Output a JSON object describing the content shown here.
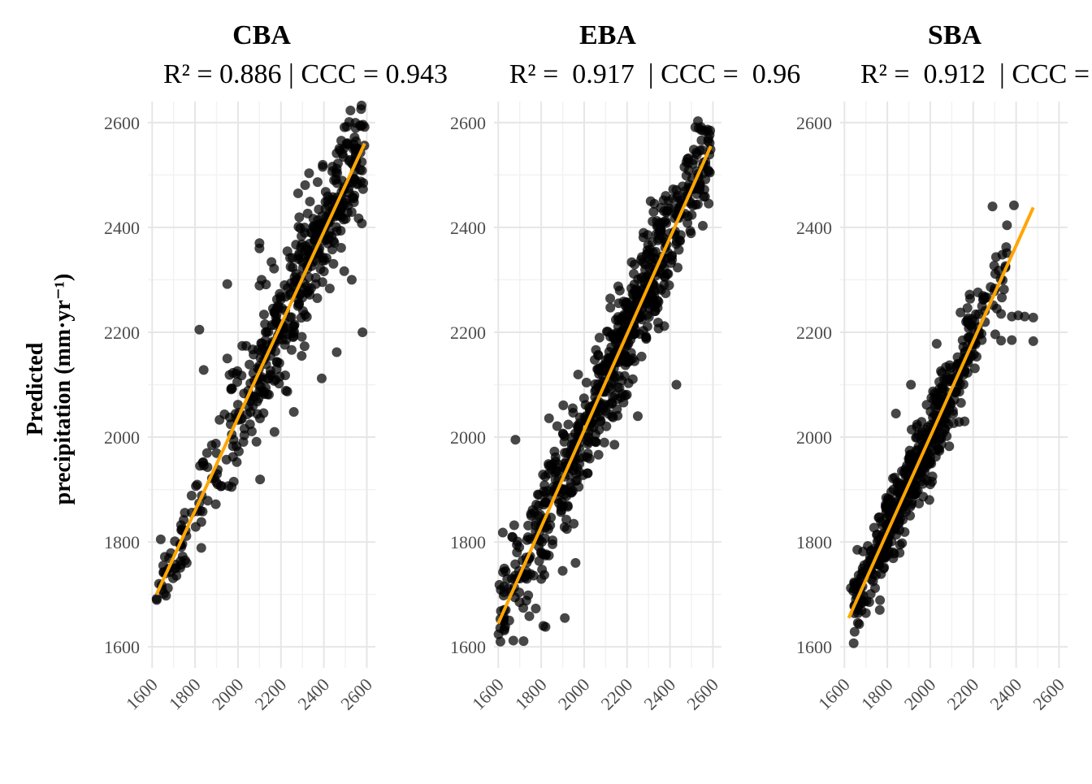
{
  "y_axis_label": {
    "line1": "Predicted",
    "line2": "precipitation (mm·yr⁻¹)"
  },
  "chart_data": [
    {
      "type": "scatter",
      "title": "CBA",
      "subtitle": "R² = 0.886 | CCC = 0.943",
      "xlabel": "",
      "ylabel": "Predicted precipitation (mm·yr⁻¹)",
      "xlim": [
        1580,
        2640
      ],
      "ylim": [
        1560,
        2640
      ],
      "xticks": [
        1600,
        1800,
        2000,
        2200,
        2400,
        2600
      ],
      "yticks": [
        1600,
        1800,
        2000,
        2200,
        2400,
        2600
      ],
      "grid": true,
      "point_color": "#000000",
      "fit_line": {
        "color": "#FFA500",
        "x": [
          1620,
          2590
        ],
        "y": [
          1700,
          2560
        ]
      },
      "clusters": [
        {
          "x_range": [
            1620,
            1760
          ],
          "y_center_at": "fit",
          "spread": 30,
          "n": 40
        },
        {
          "x_range": [
            1760,
            1960
          ],
          "y_center_at": "fit",
          "spread": 40,
          "n": 35
        },
        {
          "x_range": [
            1960,
            2100
          ],
          "y_center_at": "fit",
          "spread": 55,
          "n": 60
        },
        {
          "x_range": [
            2100,
            2350
          ],
          "y_center_at": "fit",
          "spread": 60,
          "n": 180
        },
        {
          "x_range": [
            2350,
            2590
          ],
          "y_center_at": "fit",
          "spread": 55,
          "n": 180
        }
      ],
      "outliers": [
        {
          "x": 1640,
          "y": 1805
        },
        {
          "x": 1820,
          "y": 2205
        },
        {
          "x": 1840,
          "y": 2128
        },
        {
          "x": 1950,
          "y": 2292
        },
        {
          "x": 1950,
          "y": 2150
        },
        {
          "x": 2100,
          "y": 2370
        },
        {
          "x": 2100,
          "y": 2360
        },
        {
          "x": 2110,
          "y": 2300
        },
        {
          "x": 2170,
          "y": 2010
        },
        {
          "x": 2260,
          "y": 2048
        },
        {
          "x": 2390,
          "y": 2112
        },
        {
          "x": 2460,
          "y": 2162
        },
        {
          "x": 2530,
          "y": 2300
        },
        {
          "x": 2580,
          "y": 2200
        },
        {
          "x": 2280,
          "y": 2465
        },
        {
          "x": 1980,
          "y": 1915
        },
        {
          "x": 1970,
          "y": 1905
        },
        {
          "x": 1905,
          "y": 1910
        }
      ]
    },
    {
      "type": "scatter",
      "title": "EBA",
      "subtitle": "R² =  0.917  | CCC =  0.96",
      "xlabel": "",
      "ylabel": "",
      "xlim": [
        1580,
        2640
      ],
      "ylim": [
        1560,
        2640
      ],
      "xticks": [
        1600,
        1800,
        2000,
        2200,
        2400,
        2600
      ],
      "yticks": [
        1600,
        1800,
        2000,
        2200,
        2400,
        2600
      ],
      "grid": true,
      "point_color": "#000000",
      "fit_line": {
        "color": "#FFA500",
        "x": [
          1600,
          2590
        ],
        "y": [
          1645,
          2555
        ]
      },
      "clusters": [
        {
          "x_range": [
            1600,
            1800
          ],
          "y_center_at": "fit",
          "spread": 50,
          "n": 90
        },
        {
          "x_range": [
            1800,
            2000
          ],
          "y_center_at": "fit",
          "spread": 55,
          "n": 140
        },
        {
          "x_range": [
            2000,
            2200
          ],
          "y_center_at": "fit",
          "spread": 55,
          "n": 200
        },
        {
          "x_range": [
            2200,
            2400
          ],
          "y_center_at": "fit",
          "spread": 55,
          "n": 200
        },
        {
          "x_range": [
            2400,
            2590
          ],
          "y_center_at": "fit",
          "spread": 45,
          "n": 110
        }
      ],
      "outliers": [
        {
          "x": 1610,
          "y": 1610
        },
        {
          "x": 1670,
          "y": 1612
        },
        {
          "x": 1810,
          "y": 1640
        },
        {
          "x": 1820,
          "y": 1638
        },
        {
          "x": 1910,
          "y": 1655
        },
        {
          "x": 1900,
          "y": 1745
        },
        {
          "x": 1960,
          "y": 1760
        },
        {
          "x": 1680,
          "y": 1995
        },
        {
          "x": 2430,
          "y": 2100
        },
        {
          "x": 2380,
          "y": 2460
        },
        {
          "x": 2310,
          "y": 2450
        },
        {
          "x": 2250,
          "y": 2040
        }
      ]
    },
    {
      "type": "scatter",
      "title": "SBA",
      "subtitle": "R² =  0.912  | CCC =",
      "xlabel": "",
      "ylabel": "",
      "xlim": [
        1580,
        2640
      ],
      "ylim": [
        1560,
        2640
      ],
      "xticks": [
        1600,
        1800,
        2000,
        2200,
        2400,
        2600
      ],
      "yticks": [
        1600,
        1800,
        2000,
        2200,
        2400,
        2600
      ],
      "grid": true,
      "point_color": "#000000",
      "fit_line": {
        "color": "#FFA500",
        "x": [
          1620,
          2480
        ],
        "y": [
          1655,
          2438
        ]
      },
      "clusters": [
        {
          "x_range": [
            1640,
            1760
          ],
          "y_center_at": "fit",
          "spread": 30,
          "n": 80
        },
        {
          "x_range": [
            1760,
            1900
          ],
          "y_center_at": "fit",
          "spread": 35,
          "n": 150
        },
        {
          "x_range": [
            1900,
            2050
          ],
          "y_center_at": "fit",
          "spread": 40,
          "n": 160
        },
        {
          "x_range": [
            2050,
            2200
          ],
          "y_center_at": "fit",
          "spread": 40,
          "n": 110
        },
        {
          "x_range": [
            2200,
            2360
          ],
          "y_center_at": "fit",
          "spread": 40,
          "n": 40
        }
      ],
      "outliers": [
        {
          "x": 1630,
          "y": 1712
        },
        {
          "x": 1660,
          "y": 1785
        },
        {
          "x": 1840,
          "y": 2045
        },
        {
          "x": 2290,
          "y": 2440
        },
        {
          "x": 2390,
          "y": 2442
        },
        {
          "x": 2480,
          "y": 2228
        },
        {
          "x": 2480,
          "y": 2183
        },
        {
          "x": 2440,
          "y": 2230
        },
        {
          "x": 2410,
          "y": 2232
        },
        {
          "x": 2380,
          "y": 2230
        },
        {
          "x": 2330,
          "y": 2235
        },
        {
          "x": 2310,
          "y": 2245
        },
        {
          "x": 2380,
          "y": 2185
        },
        {
          "x": 2330,
          "y": 2184
        },
        {
          "x": 2240,
          "y": 2185
        },
        {
          "x": 2210,
          "y": 2180
        },
        {
          "x": 2030,
          "y": 2178
        },
        {
          "x": 1910,
          "y": 2100
        },
        {
          "x": 2160,
          "y": 2030
        },
        {
          "x": 2000,
          "y": 1910
        }
      ]
    }
  ]
}
